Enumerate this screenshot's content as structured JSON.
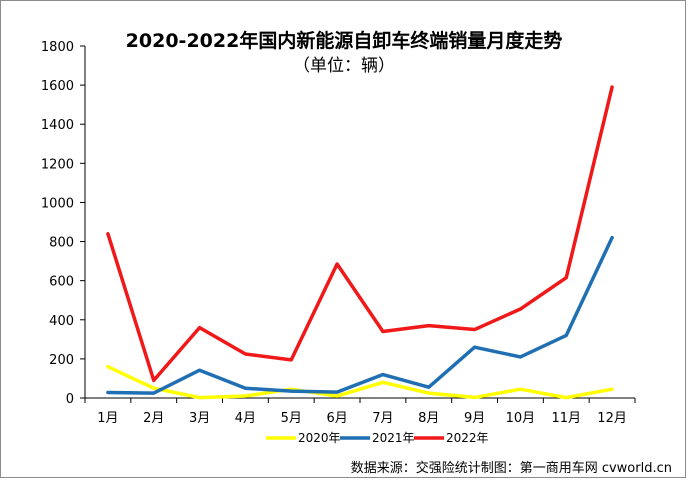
{
  "title": "2020-2022年国内新能源自卸车终端销量月度走势",
  "subtitle": "（单位：辆）",
  "source": "数据来源：交强险统计制图：第一商用车网 cvworld.cn",
  "chart_data": {
    "type": "line",
    "categories": [
      "1月",
      "2月",
      "3月",
      "4月",
      "5月",
      "6月",
      "7月",
      "8月",
      "9月",
      "10月",
      "11月",
      "12月"
    ],
    "ylim": [
      0,
      1800
    ],
    "yticks": [
      0,
      200,
      400,
      600,
      800,
      1000,
      1200,
      1400,
      1600,
      1800
    ],
    "grid": false,
    "legend_position": "bottom",
    "series": [
      {
        "name": "2020年",
        "color": "#ffff00",
        "values": [
          160,
          50,
          2,
          10,
          45,
          10,
          80,
          25,
          3,
          45,
          2,
          45
        ]
      },
      {
        "name": "2021年",
        "color": "#1f6fb2",
        "values": [
          28,
          25,
          142,
          50,
          35,
          30,
          120,
          55,
          260,
          210,
          320,
          820
        ]
      },
      {
        "name": "2022年",
        "color": "#f01818",
        "values": [
          840,
          90,
          360,
          225,
          195,
          685,
          340,
          370,
          350,
          455,
          615,
          1590
        ]
      }
    ]
  }
}
